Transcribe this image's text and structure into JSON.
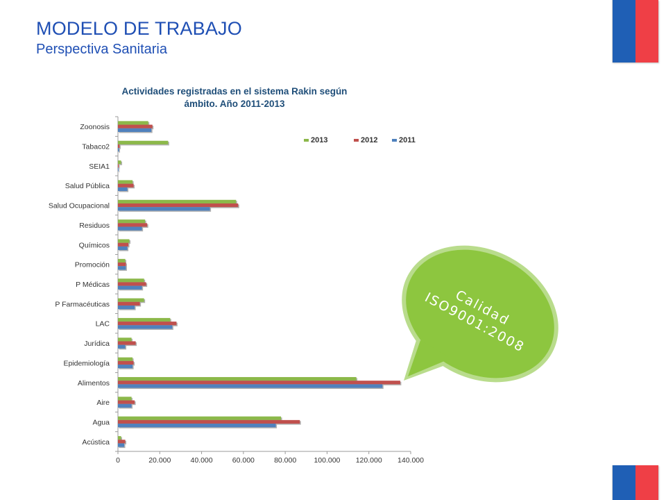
{
  "header": {
    "title": "MODELO DE TRABAJO",
    "subtitle": "Perspectiva Sanitaria"
  },
  "callout": {
    "line1": "Calidad",
    "line2": "ISO9001:2008",
    "color": "#8dc63f"
  },
  "chart_data": {
    "type": "bar",
    "orientation": "horizontal",
    "title_line1": "Actividades registradas en el sistema Rakin  según",
    "title_line2": "ámbito. Año 2011-2013",
    "categories": [
      "Zoonosis",
      "Tabaco2",
      "SEIA1",
      "Salud Pública",
      "Salud Ocupacional",
      "Residuos",
      "Químicos",
      "Promoción",
      "P Médicas",
      "P Farmacéuticas",
      "LAC",
      "Jurídica",
      "Epidemiología",
      "Alimentos",
      "Aire",
      "Agua",
      "Acústica"
    ],
    "series": [
      {
        "name": "2013",
        "color": "#8cb84a",
        "values": [
          14500,
          24000,
          1500,
          7000,
          56500,
          13000,
          5500,
          3500,
          12500,
          12500,
          25000,
          6500,
          7000,
          114000,
          6500,
          78000,
          1500
        ]
      },
      {
        "name": "2012",
        "color": "#c0504d",
        "values": [
          16500,
          800,
          400,
          7500,
          57500,
          14000,
          5000,
          3800,
          13500,
          10500,
          28000,
          8500,
          7500,
          135000,
          8000,
          87000,
          3500
        ]
      },
      {
        "name": "2011",
        "color": "#4f81bd",
        "values": [
          16000,
          500,
          300,
          4500,
          44000,
          11500,
          4500,
          3800,
          11500,
          8000,
          26000,
          3500,
          7000,
          126500,
          6500,
          75500,
          3000
        ]
      }
    ],
    "xlim": [
      0,
      140000
    ],
    "x_ticks": [
      "0",
      "20.000",
      "40.000",
      "60.000",
      "80.000",
      "100.000",
      "120.000",
      "140.000"
    ],
    "legend": [
      "2013",
      "2012",
      "2011"
    ],
    "legend_position": "top-right",
    "grid": false
  }
}
